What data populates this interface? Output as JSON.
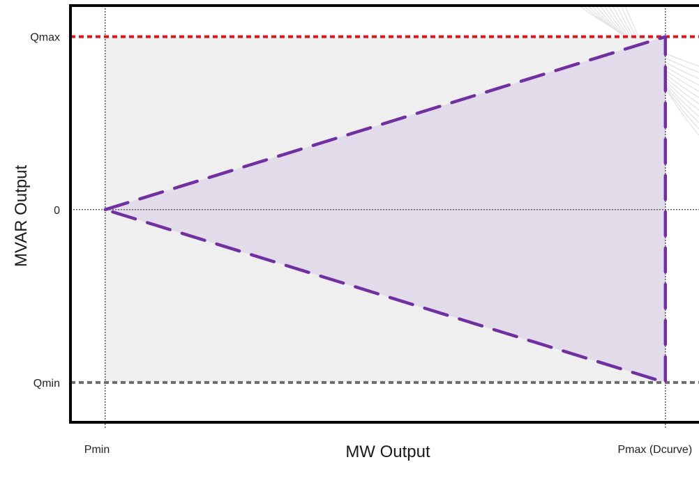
{
  "chart_data": {
    "type": "area",
    "xlabel": "MW Output",
    "ylabel": "MVAR Output",
    "x_ticks": [
      {
        "label": "Pmin",
        "value": 0
      },
      {
        "label": "Pmax (Dcurve)",
        "value": 1
      }
    ],
    "y_ticks": [
      {
        "label": "Qmax",
        "value": 1
      },
      {
        "label": "0",
        "value": 0
      },
      {
        "label": "Qmin",
        "value": -1
      }
    ],
    "xlim": [
      -0.062,
      1.06
    ],
    "ylim": [
      -1.23,
      1.18
    ],
    "reference_lines": [
      {
        "axis": "y",
        "value": 1,
        "style": "dotted",
        "color": "#e2141a",
        "label": "Qmax"
      },
      {
        "axis": "y",
        "value": -1,
        "style": "dotted",
        "color": "#6b6b6b",
        "label": "Qmin"
      },
      {
        "axis": "y",
        "value": 0,
        "style": "thin-dotted",
        "color": "#333333"
      },
      {
        "axis": "x",
        "value": 0,
        "style": "thin-dotted",
        "color": "#333333"
      },
      {
        "axis": "x",
        "value": 1,
        "style": "thin-dotted",
        "color": "#333333"
      }
    ],
    "regions": [
      {
        "shape": "rectangle",
        "x_range": [
          0,
          1
        ],
        "y_range": [
          -1,
          1
        ],
        "color": "#efefef"
      },
      {
        "shape": "polygon",
        "points": [
          {
            "x": 0,
            "y": 0
          },
          {
            "x": 1,
            "y": 1
          },
          {
            "x": 1,
            "y": -1
          }
        ],
        "fill": "#e2dbe9",
        "stroke": "#7030a0",
        "stroke_style": "dashed"
      }
    ],
    "grid": false,
    "legend": "none"
  }
}
